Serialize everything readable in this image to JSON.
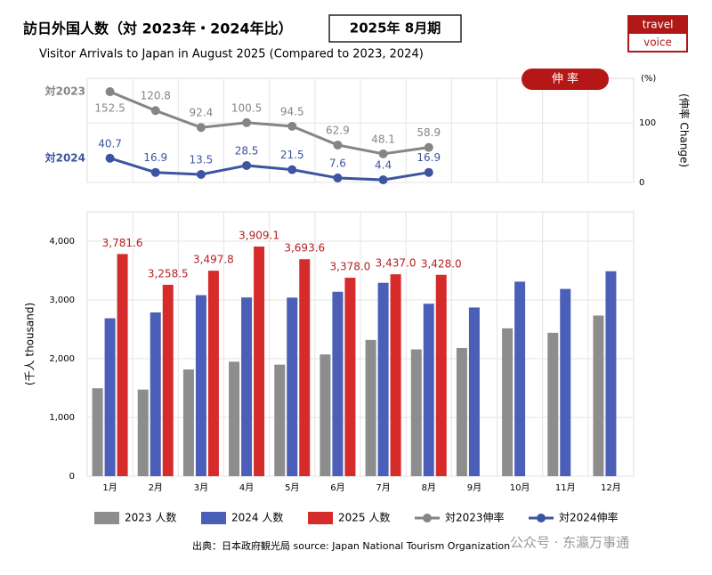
{
  "title": "訪日外国人数（対 2023年・2024年比）",
  "period": "2025年 8月期",
  "subtitle": "Visitor Arrivals to Japan in August 2025 (Compared to 2023, 2024)",
  "logo": [
    "travel",
    "voice"
  ],
  "source": "出典：日本政府観光局  source: Japan National Tourism Organization",
  "watermark": "公众号 · 东瀛万事通",
  "chart_data": [
    {
      "type": "line",
      "badge": "伸 率",
      "y2_label": "(伸率 Change)",
      "y2_unit": "(%)",
      "y2lim": [
        0,
        175
      ],
      "y2ticks": [
        0,
        100
      ],
      "grid": true,
      "categories": [
        "1月",
        "2月",
        "3月",
        "4月",
        "5月",
        "6月",
        "7月",
        "8月",
        "9月",
        "10月",
        "11月",
        "12月"
      ],
      "series": [
        {
          "name": "対2023伸率",
          "label": "対2023",
          "color": "#858585",
          "axis": "y2",
          "values": [
            152.5,
            120.8,
            92.4,
            100.5,
            94.5,
            62.9,
            48.1,
            58.9,
            null,
            null,
            null,
            null
          ]
        },
        {
          "name": "対2024伸率",
          "label": "対2024",
          "color": "#3d55a0",
          "axis": "y2",
          "values": [
            40.7,
            16.9,
            13.5,
            28.5,
            21.5,
            7.6,
            4.4,
            16.9,
            null,
            null,
            null,
            null
          ]
        }
      ]
    },
    {
      "type": "bar",
      "ylabel": "(千人 thousand)",
      "ylim": [
        0,
        4500
      ],
      "yticks": [
        0,
        {
          "value": 1000,
          "label": "1,000"
        },
        {
          "value": 2000,
          "label": "2,000"
        },
        {
          "value": 3000,
          "label": "3,000"
        },
        {
          "value": 4000,
          "label": "4,000"
        }
      ],
      "grid": true,
      "categories": [
        "1月",
        "2月",
        "3月",
        "4月",
        "5月",
        "6月",
        "7月",
        "8月",
        "9月",
        "10月",
        "11月",
        "12月"
      ],
      "series": [
        {
          "name": "2023 人数",
          "color": "#8d8d8d",
          "values": [
            1497,
            1475,
            1817,
            1949,
            1899,
            2073,
            2320,
            2159,
            2182,
            2517,
            2441,
            2735
          ]
        },
        {
          "name": "2024 人数",
          "color": "#4b5fb8",
          "values": [
            2688,
            2788,
            3082,
            3043,
            3040,
            3140,
            3292,
            2936,
            2872,
            3312,
            3188,
            3489
          ]
        },
        {
          "name": "2025 人数",
          "color": "#d62b2b",
          "values": [
            3781.6,
            3258.5,
            3497.8,
            3909.1,
            3693.6,
            3378.0,
            3437.0,
            3428.0,
            null,
            null,
            null,
            null
          ],
          "value_labels": [
            "3,781.6",
            "3,258.5",
            "3,497.8",
            "3,909.1",
            "3,693.6",
            "3,378.0",
            "3,437.0",
            "3,428.0",
            null,
            null,
            null,
            null
          ]
        }
      ]
    }
  ]
}
